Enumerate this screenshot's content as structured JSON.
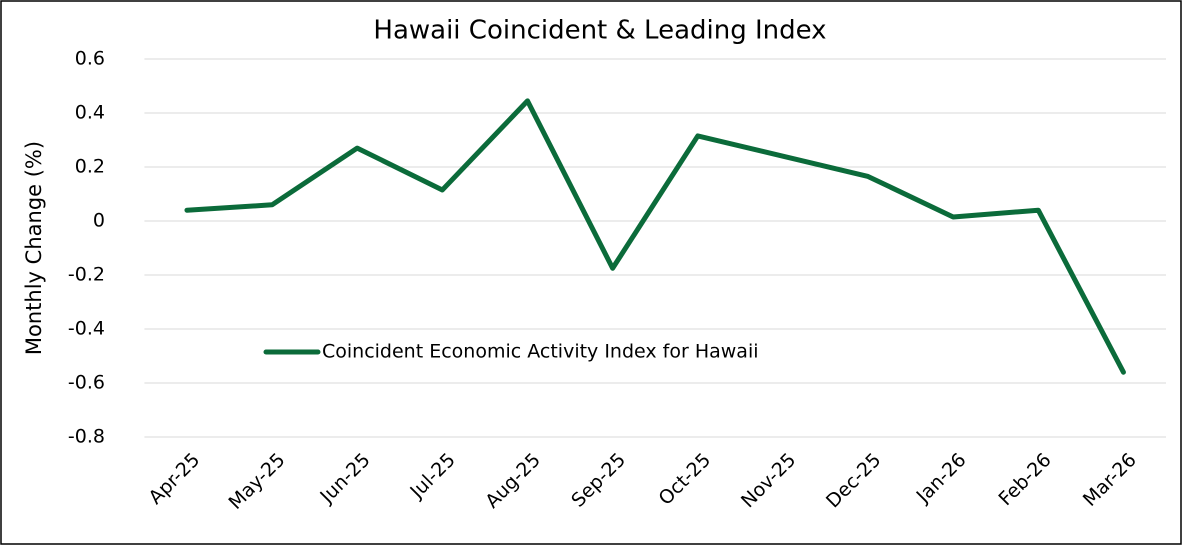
{
  "chart_data": {
    "type": "line",
    "title": "Hawaii Coincident & Leading Index",
    "y_label": "Monthly Change (%)",
    "categories": [
      "Apr-25",
      "May-25",
      "Jun-25",
      "Jul-25",
      "Aug-25",
      "Sep-25",
      "Oct-25",
      "Nov-25",
      "Dec-25",
      "Jan-26",
      "Feb-26",
      "Mar-26"
    ],
    "series": [
      {
        "name": "Coincident Economic Activity Index for Hawaii",
        "color": "#0b6b3a",
        "values": [
          0.04,
          0.06,
          0.27,
          0.115,
          0.445,
          -0.175,
          0.315,
          0.24,
          0.165,
          0.015,
          0.04,
          -0.56
        ]
      }
    ],
    "ylim": [
      -0.8,
      0.6
    ],
    "yticks": [
      -0.8,
      -0.6,
      -0.4,
      -0.2,
      0,
      0.2,
      0.4,
      0.6
    ],
    "grid": true,
    "legend": "lower left"
  }
}
